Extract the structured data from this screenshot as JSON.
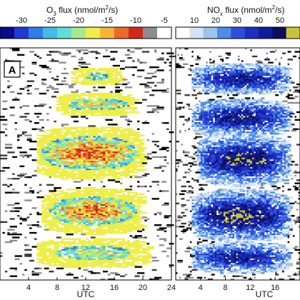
{
  "figure": {
    "panel_label": "A"
  },
  "chart_data": [
    {
      "type": "heatmap",
      "title": "",
      "colorbar": {
        "label_main": "O",
        "label_sub": "3",
        "label_rest": " flux (nmol/m",
        "label_sup": "2",
        "label_end": "/s)",
        "ticks": [
          -30,
          -25,
          -20,
          -15,
          -10,
          -5
        ],
        "colors": [
          "#0a0a8c",
          "#1e3ad2",
          "#2e7de8",
          "#3fbce8",
          "#63dcd8",
          "#a7e98f",
          "#eeee4a",
          "#f5b43a",
          "#ee6a2a",
          "#cc2b1a",
          "#8c8c8c",
          "#ffffff"
        ]
      },
      "x_axis": {
        "xlabel": "",
        "ticks": [
          4,
          8,
          12,
          16,
          20,
          24
        ],
        "range": [
          0,
          24
        ]
      },
      "bands": [
        {
          "center": 0.12,
          "width": 0.032,
          "strength": 0.55,
          "hours": [
            10,
            17
          ]
        },
        {
          "center": 0.24,
          "width": 0.04,
          "strength": 0.7,
          "hours": [
            8,
            19
          ]
        },
        {
          "center": 0.45,
          "width": 0.08,
          "strength": 1.0,
          "hours": [
            5,
            20
          ]
        },
        {
          "center": 0.7,
          "width": 0.07,
          "strength": 0.95,
          "hours": [
            6,
            20
          ]
        },
        {
          "center": 0.88,
          "width": 0.05,
          "strength": 0.65,
          "hours": [
            5,
            21
          ]
        }
      ]
    },
    {
      "type": "heatmap",
      "title": "",
      "colorbar": {
        "label_main": "NO",
        "label_sub": "x",
        "label_rest": " flux (nmol/m",
        "label_sup": "2",
        "label_end": "/s)",
        "ticks": [
          10,
          20,
          30,
          40,
          50
        ],
        "colors": [
          "#ffffff",
          "#d6e3f5",
          "#9cc3ee",
          "#4d8ce8",
          "#2d4ee0",
          "#1d2fc0",
          "#101c9a",
          "#0a0f5c",
          "#c9c33a"
        ]
      },
      "x_axis": {
        "xlabel": "UTC",
        "ticks": [
          4,
          8,
          12,
          16
        ],
        "range": [
          0,
          24
        ]
      },
      "bands": [
        {
          "center": 0.13,
          "width": 0.05,
          "strength": 0.8,
          "hours": [
            3,
            22
          ]
        },
        {
          "center": 0.3,
          "width": 0.06,
          "strength": 0.85,
          "hours": [
            3,
            22
          ]
        },
        {
          "center": 0.48,
          "width": 0.08,
          "strength": 0.95,
          "hours": [
            4,
            22
          ]
        },
        {
          "center": 0.72,
          "width": 0.08,
          "strength": 1.0,
          "hours": [
            3,
            22
          ]
        },
        {
          "center": 0.9,
          "width": 0.05,
          "strength": 0.8,
          "hours": [
            3,
            22
          ]
        }
      ]
    }
  ],
  "left_xlabel": "UTC"
}
